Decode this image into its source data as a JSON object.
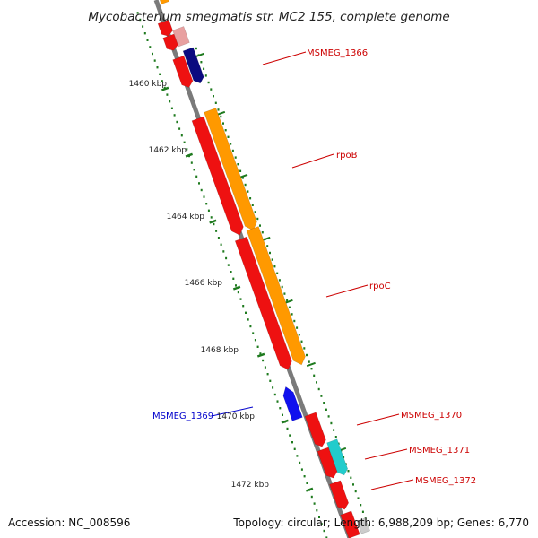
{
  "title": "Mycobacterium smegmatis str. MC2 155, complete genome",
  "footer": {
    "accession": "Accession: NC_008596",
    "summary": "Topology: circular; Length: 6,988,209 bp; Genes: 6,770"
  },
  "colors": {
    "backbone": "#7a7a7a",
    "tick": "#1e7a1e",
    "gene_red": "#ee1111",
    "gene_orange": "#ff9900",
    "gene_navy": "#0a0a80",
    "gene_blue": "#1010ee",
    "gene_cyan": "#22cccc",
    "label_red": "#cc0000",
    "label_blue": "#0000cc"
  },
  "scale_labels": [
    "1460 kbp",
    "1462 kbp",
    "1464 kbp",
    "1466 kbp",
    "1468 kbp",
    "1470 kbp",
    "1472 kbp"
  ],
  "gene_labels": {
    "msmeg_1366": "MSMEG_1366",
    "rpob": "rpoB",
    "rpoc": "rpoC",
    "msmeg_1369": "MSMEG_1369",
    "msmeg_1370": "MSMEG_1370",
    "msmeg_1371": "MSMEG_1371",
    "msmeg_1372": "MSMEG_1372"
  }
}
